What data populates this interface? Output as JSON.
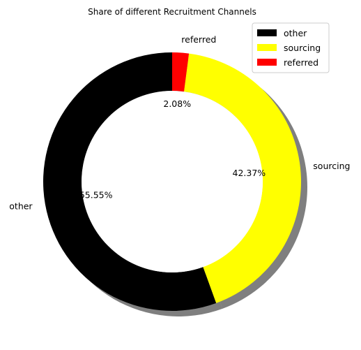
{
  "chart_data": {
    "type": "pie",
    "donut": true,
    "title": "Share of different Recruitment Channels",
    "slices": [
      {
        "label": "other",
        "value": 55.55,
        "value_text": "55.55%",
        "color": "#000000"
      },
      {
        "label": "sourcing",
        "value": 42.37,
        "value_text": "42.37%",
        "color": "#ffff00"
      },
      {
        "label": "referred",
        "value": 2.08,
        "value_text": "2.08%",
        "color": "#ff0000"
      }
    ],
    "start_angle_deg": 90,
    "direction": "counterclockwise",
    "shadow": true,
    "legend_position": "top-right",
    "legend": [
      "other",
      "sourcing",
      "referred"
    ]
  }
}
